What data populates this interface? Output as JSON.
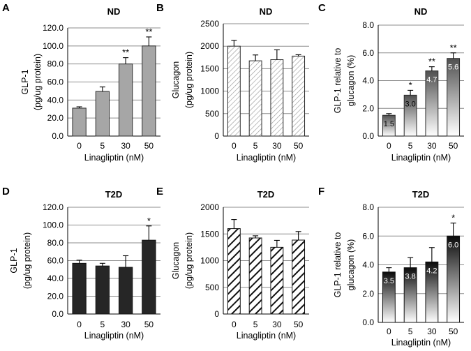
{
  "chart_data": [
    {
      "panel": "A",
      "type": "bar",
      "title": "ND",
      "ylabel": [
        "GLP-1",
        "(pg/ug protein)"
      ],
      "xlabel": "Linagliptin (nM)",
      "categories": [
        "0",
        "5",
        "30",
        "50"
      ],
      "values": [
        31,
        49.5,
        80,
        100
      ],
      "errors": [
        1.5,
        5,
        7,
        10
      ],
      "significance": [
        "",
        "",
        "**",
        "**"
      ],
      "ylim": [
        0,
        120
      ],
      "yticks": [
        "0.0",
        "20.0",
        "40.0",
        "60.0",
        "80.0",
        "100.0",
        "120.0"
      ],
      "style": "solid-gray",
      "grid": true
    },
    {
      "panel": "B",
      "type": "bar",
      "title": "ND",
      "ylabel": [
        "Glucagon",
        "(pg/ug protein)"
      ],
      "xlabel": "Linagliptin (nM)",
      "categories": [
        "0",
        "5",
        "30",
        "50"
      ],
      "values": [
        2000,
        1675,
        1700,
        1780
      ],
      "errors": [
        130,
        130,
        220,
        30
      ],
      "significance": [
        "",
        "",
        "",
        ""
      ],
      "ylim": [
        0,
        2500
      ],
      "yticks": [
        "0",
        "500",
        "1000",
        "1500",
        "2000",
        "2500"
      ],
      "style": "hatch-light",
      "grid": true
    },
    {
      "panel": "C",
      "type": "bar",
      "title": "ND",
      "ylabel": [
        "GLP-1 relative to",
        "glucagon (%)"
      ],
      "xlabel": "Linagliptin (nM)",
      "categories": [
        "0",
        "5",
        "30",
        "50"
      ],
      "values": [
        1.5,
        2.95,
        4.7,
        5.6
      ],
      "errors": [
        0.12,
        0.35,
        0.3,
        0.4
      ],
      "data_labels": [
        "1.5",
        "3.0",
        "4.7",
        "5.6"
      ],
      "significance": [
        "",
        "*",
        "**",
        "**"
      ],
      "ylim": [
        0,
        8
      ],
      "yticks": [
        "0.0",
        "2.0",
        "4.0",
        "6.0",
        "8.0"
      ],
      "style": "gradient-gray",
      "grid": true
    },
    {
      "panel": "D",
      "type": "bar",
      "title": "T2D",
      "ylabel": [
        "GLP-1",
        "(pg/ug protein)"
      ],
      "xlabel": "Linagliptin (nM)",
      "categories": [
        "0",
        "5",
        "30",
        "50"
      ],
      "values": [
        57,
        54,
        52.5,
        83
      ],
      "errors": [
        3.5,
        3,
        13,
        16
      ],
      "significance": [
        "",
        "",
        "",
        "*"
      ],
      "ylim": [
        0,
        120
      ],
      "yticks": [
        "0.0",
        "20.0",
        "40.0",
        "60.0",
        "80.0",
        "100.0",
        "120.0"
      ],
      "style": "solid-dark",
      "grid": true
    },
    {
      "panel": "E",
      "type": "bar",
      "title": "T2D",
      "ylabel": [
        "Glucagon",
        "(pg/ug protein)"
      ],
      "xlabel": "Linagliptin (nM)",
      "categories": [
        "0",
        "5",
        "30",
        "50"
      ],
      "values": [
        1600,
        1425,
        1250,
        1385
      ],
      "errors": [
        170,
        40,
        130,
        160
      ],
      "significance": [
        "",
        "",
        "",
        ""
      ],
      "ylim": [
        0,
        2000
      ],
      "yticks": [
        "0",
        "500",
        "1000",
        "1500",
        "2000"
      ],
      "style": "hatch-dark",
      "grid": true
    },
    {
      "panel": "F",
      "type": "bar",
      "title": "T2D",
      "ylabel": [
        "GLP-1 relative to",
        "glucagon (%)"
      ],
      "xlabel": "Linagliptin (nM)",
      "categories": [
        "0",
        "5",
        "30",
        "50"
      ],
      "values": [
        3.5,
        3.8,
        4.2,
        6.0
      ],
      "errors": [
        0.3,
        0.7,
        1.0,
        0.9
      ],
      "data_labels": [
        "3.5",
        "3.8",
        "4.2",
        "6.0"
      ],
      "significance": [
        "",
        "",
        "",
        "*"
      ],
      "ylim": [
        0,
        8
      ],
      "yticks": [
        "0.0",
        "2.0",
        "4.0",
        "6.0",
        "8.0"
      ],
      "style": "gradient-dark",
      "grid": true
    }
  ]
}
